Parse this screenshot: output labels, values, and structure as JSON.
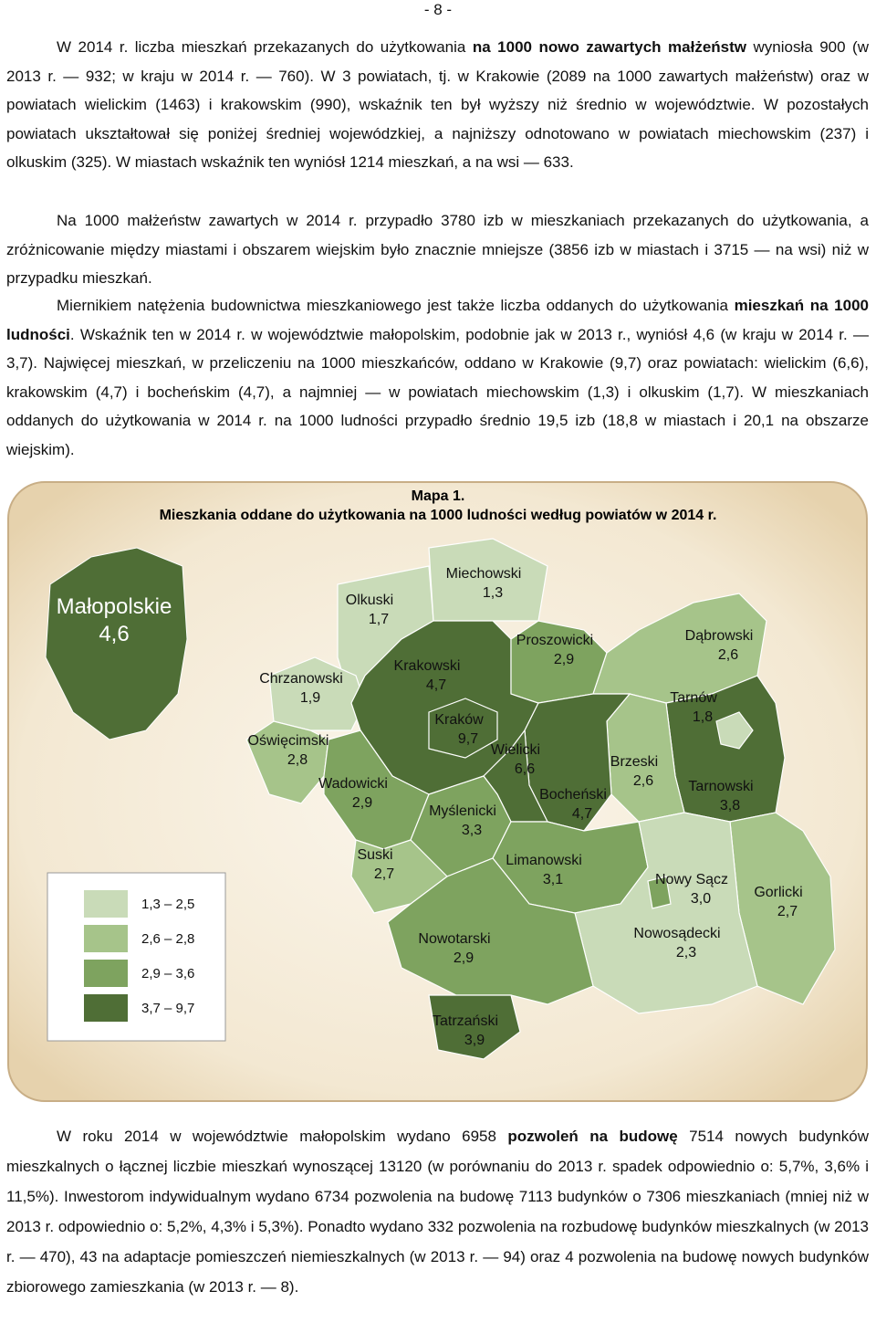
{
  "page_number": "- 8 -",
  "paragraphs_top": [
    [
      {
        "text": "W 2014 r. liczba mieszkań przekazanych do użytkowania ",
        "bold": false
      },
      {
        "text": "na 1000 nowo zawartych małżeństw",
        "bold": true
      },
      {
        "text": " wyniosła 900 (w 2013 r. — 932; w kraju w 2014 r. — 760). W 3 powiatach, tj. w Krakowie (2089 na 1000 zawartych małżeństw) oraz w powiatach wielickim (1463) i krakowskim (990), wskaźnik ten był wyższy niż średnio w województwie. W pozostałych powiatach ukształtował się poniżej średniej wojewódzkiej, a najniższy odnotowano w powiatach miechowskim (237) i olkuskim (325). W miastach wskaźnik ten wyniósł 1214 mieszkań, a na wsi — 633.",
        "bold": false
      }
    ],
    [
      {
        "text": "Na 1000 małżeństw zawartych w 2014 r. przypadło 3780 izb w mieszkaniach przekazanych do użytkowania, a zróżnicowanie między miastami i obszarem wiejskim było znacznie mniejsze (3856 izb w miastach i 3715 — na wsi) niż w przypadku mieszkań.",
        "bold": false
      }
    ],
    [
      {
        "text": "Miernikiem natężenia budownictwa mieszkaniowego jest także liczba oddanych do użytkowania ",
        "bold": false
      },
      {
        "text": "mieszkań na 1000 ludności",
        "bold": true
      },
      {
        "text": ". Wskaźnik ten w 2014 r. w województwie małopolskim, podobnie jak w 2013 r., wyniósł 4,6 (w kraju w 2014 r. — 3,7). Najwięcej mieszkań, w przeliczeniu na 1000 mieszkańców, oddano w Krakowie (9,7) oraz powiatach: wielickim (6,6), krakowskim (4,7) i bocheńskim (4,7), a najmniej — w powiatach miechowskim (1,3) i olkuskim (1,7). W mieszkaniach oddanych do użytkowania w 2014 r. na 1000 ludności przypadło średnio 19,5 izb (18,8 w miastach i 20,1 na obszarze wiejskim).",
        "bold": false
      }
    ]
  ],
  "map": {
    "title": "Mapa 1.",
    "subtitle": "Mieszkania oddane do użytkowania na 1000 ludności według powiatów w 2014 r.",
    "voivodeship": {
      "name": "Małopolskie",
      "value": "4,6",
      "color": "#4f6e36"
    },
    "regions": [
      {
        "name": "Olkuski",
        "value": "1,7",
        "color": "#c9dbb8"
      },
      {
        "name": "Miechowski",
        "value": "1,3",
        "color": "#c9dbb8"
      },
      {
        "name": "Chrzanowski",
        "value": "1,9",
        "color": "#c9dbb8"
      },
      {
        "name": "Krakowski",
        "value": "4,7",
        "color": "#4f6e36"
      },
      {
        "name": "Proszowicki",
        "value": "2,9",
        "color": "#7ea35f"
      },
      {
        "name": "Dąbrowski",
        "value": "2,6",
        "color": "#a6c48a"
      },
      {
        "name": "Tarnowski",
        "value": "3,8",
        "color": "#4f6e36"
      },
      {
        "name": "Tarnów",
        "value": "1,8",
        "color": "#c9dbb8"
      },
      {
        "name": "Brzeski",
        "value": "2,6",
        "color": "#a6c48a"
      },
      {
        "name": "Bocheński",
        "value": "4,7",
        "color": "#4f6e36"
      },
      {
        "name": "Kraków",
        "value": "9,7",
        "color": "#4f6e36"
      },
      {
        "name": "Wielicki",
        "value": "6,6",
        "color": "#4f6e36"
      },
      {
        "name": "Oświęcimski",
        "value": "2,8",
        "color": "#a6c48a"
      },
      {
        "name": "Wadowicki",
        "value": "2,9",
        "color": "#7ea35f"
      },
      {
        "name": "Myślenicki",
        "value": "3,3",
        "color": "#7ea35f"
      },
      {
        "name": "Suski",
        "value": "2,7",
        "color": "#a6c48a"
      },
      {
        "name": "Limanowski",
        "value": "3,1",
        "color": "#7ea35f"
      },
      {
        "name": "Gorlicki",
        "value": "2,7",
        "color": "#a6c48a"
      },
      {
        "name": "Nowosądecki",
        "value": "2,3",
        "color": "#c9dbb8"
      },
      {
        "name": "Nowy Sącz",
        "value": "3,0",
        "color": "#7ea35f"
      },
      {
        "name": "Nowotarski",
        "value": "2,9",
        "color": "#7ea35f"
      },
      {
        "name": "Tatrzański",
        "value": "3,9",
        "color": "#4f6e36"
      }
    ],
    "legend": [
      {
        "label": "1,3 – 2,5",
        "color": "#c9dbb8"
      },
      {
        "label": "2,6 – 2,8",
        "color": "#a6c48a"
      },
      {
        "label": "2,9 – 3,6",
        "color": "#7ea35f"
      },
      {
        "label": "3,7 – 9,7",
        "color": "#4f6e36"
      }
    ]
  },
  "paragraphs_bottom": [
    [
      {
        "text": "W roku 2014 w województwie małopolskim wydano 6958 ",
        "bold": false
      },
      {
        "text": "pozwoleń na budowę",
        "bold": true
      },
      {
        "text": " 7514 nowych budynków mieszkalnych o łącznej liczbie mieszkań wynoszącej 13120 (w porównaniu do 2013 r. spadek odpowiednio o: 5,7%, 3,6% i 11,5%). Inwestorom indywidualnym wydano 6734 pozwolenia na budowę 7113 budynków o 7306 mieszkaniach (mniej niż w 2013 r. odpowiednio o: 5,2%, 4,3% i 5,3%). Ponadto wydano 332 pozwolenia na rozbudowę budynków mieszkalnych (w 2013 r. — 470), 43 na adaptacje pomieszczeń niemieszkalnych (w 2013 r. — 94) oraz 4 pozwolenia na budowę nowych budynków zbiorowego zamieszkania (w 2013 r. — 8).",
        "bold": false
      }
    ]
  ]
}
